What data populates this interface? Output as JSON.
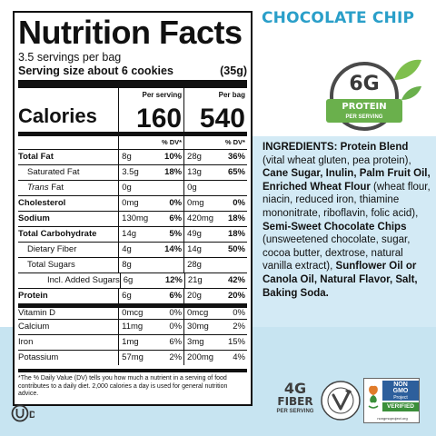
{
  "flavor": "CHOCOLATE CHIP",
  "badge": {
    "amount": "6G",
    "label": "PROTEIN",
    "sub": "PER SERVING"
  },
  "label": {
    "title": "Nutrition Facts",
    "servings": "3.5 servings per bag",
    "serving_size_label": "Serving size about 6 cookies",
    "serving_size_value": "(35g)",
    "calories_label": "Calories",
    "per_serving_head": "Per serving",
    "per_bag_head": "Per bag",
    "calories_serving": "160",
    "calories_bag": "540",
    "dv_head_1": "% DV*",
    "dv_head_2": "% DV*",
    "rows": [
      {
        "name": "Total Fat",
        "a": "8g",
        "b": "10%",
        "c": "28g",
        "d": "36%"
      },
      {
        "name": "Saturated Fat",
        "a": "3.5g",
        "b": "18%",
        "c": "13g",
        "d": "65%"
      },
      {
        "name": "Trans",
        "name2": " Fat",
        "a": "0g",
        "b": "",
        "c": "0g",
        "d": ""
      },
      {
        "name": "Cholesterol",
        "a": "0mg",
        "b": "0%",
        "c": "0mg",
        "d": "0%"
      },
      {
        "name": "Sodium",
        "a": "130mg",
        "b": "6%",
        "c": "420mg",
        "d": "18%"
      },
      {
        "name": "Total Carbohydrate",
        "a": "14g",
        "b": "5%",
        "c": "49g",
        "d": "18%"
      },
      {
        "name": "Dietary Fiber",
        "a": "4g",
        "b": "14%",
        "c": "14g",
        "d": "50%"
      },
      {
        "name": "Total Sugars",
        "a": "8g",
        "b": "",
        "c": "28g",
        "d": ""
      },
      {
        "name": "Incl. Added Sugars",
        "a": "6g",
        "b": "12%",
        "c": "21g",
        "d": "42%"
      },
      {
        "name": "Protein",
        "a": "6g",
        "b": "6%",
        "c": "20g",
        "d": "20%"
      },
      {
        "name": "Vitamin D",
        "a": "0mcg",
        "b": "0%",
        "c": "0mcg",
        "d": "0%"
      },
      {
        "name": "Calcium",
        "a": "11mg",
        "b": "0%",
        "c": "30mg",
        "d": "2%"
      },
      {
        "name": "Iron",
        "a": "1mg",
        "b": "6%",
        "c": "3mg",
        "d": "15%"
      },
      {
        "name": "Potassium",
        "a": "57mg",
        "b": "2%",
        "c": "200mg",
        "d": "4%"
      }
    ],
    "footnote": "*The % Daily Value (DV) tells you how much a nutrient in a serving of food contributes to a daily diet. 2,000 calories a day is used for general nutrition advice."
  },
  "kosher_mark": "D",
  "ingredients": {
    "p1": "INGREDIENTS: Protein Blend",
    "p2": " (vital wheat gluten, pea protein), ",
    "p3": "Cane Sugar, Inulin, Palm Fruit Oil, Enriched Wheat Flour",
    "p4": " (wheat flour, niacin, reduced iron, thiamine mononitrate, riboflavin, folic acid), ",
    "p5": "Semi-Sweet Chocolate Chips",
    "p6": " (unsweetened chocolate, sugar, cocoa butter, dextrose, natural vanilla extract), ",
    "p7": "Sunflower Oil or Canola Oil, Natural Flavor, Salt, Baking Soda."
  },
  "fiber_logo": {
    "amount": "4G",
    "word": "FIBER",
    "sub": "PER SERVING"
  },
  "vegan_logo": {
    "top": "CERTIFIED VEGAN",
    "bottom": "VEGAN.ORG"
  },
  "nongmo_logo": {
    "line1": "NON",
    "line2": "GMO",
    "line3": "Project",
    "verified": "VERIFIED",
    "url": "nongmoproject.org"
  },
  "colors": {
    "accent_blue": "#2a9fc9",
    "green": "#6ab04c",
    "bg_blue": "#d3eaf5"
  }
}
